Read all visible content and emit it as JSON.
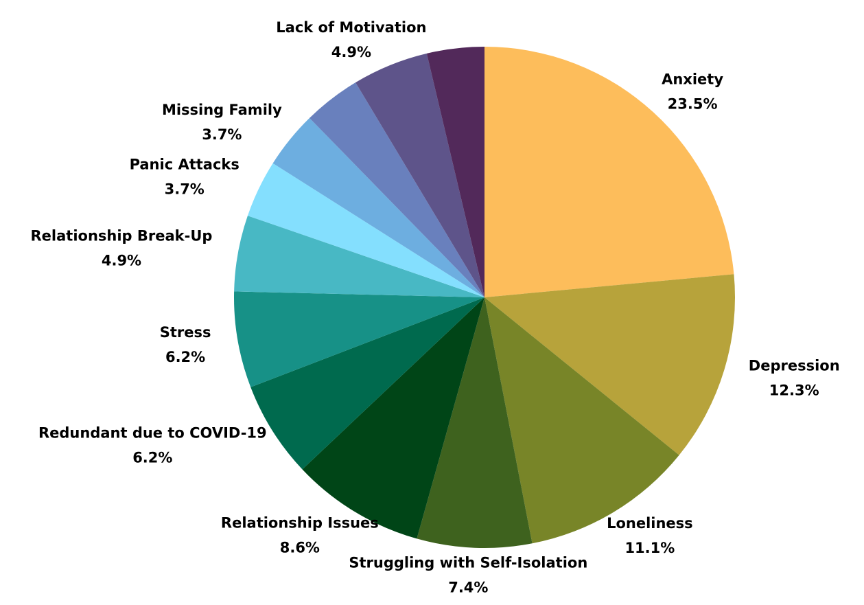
{
  "chart_data": {
    "type": "pie",
    "categories": [
      "Anxiety",
      "Depression",
      "Loneliness",
      "Struggling with Self-Isolation",
      "Relationship Issues",
      "Redundant due to COVID-19",
      "Stress",
      "Relationship Break-Up",
      "Panic Attacks",
      "Missing Family",
      null,
      "Lack of Motivation",
      null
    ],
    "values": [
      23.5,
      12.3,
      11.1,
      7.4,
      8.6,
      6.2,
      6.2,
      4.9,
      3.7,
      3.7,
      3.7,
      4.9,
      3.7
    ],
    "value_labels": [
      "23.5%",
      "12.3%",
      "11.1%",
      "7.4%",
      "8.6%",
      "6.2%",
      "6.2%",
      "4.9%",
      "3.7%",
      "3.7%",
      null,
      "4.9%",
      null
    ],
    "colors": [
      "#fdbd5b",
      "#b7a33b",
      "#788528",
      "#3e621e",
      "#004517",
      "#006a4e",
      "#179187",
      "#48b8c4",
      "#84dffe",
      "#6daee0",
      "#6980bd",
      "#5e548a",
      "#52295a"
    ]
  }
}
